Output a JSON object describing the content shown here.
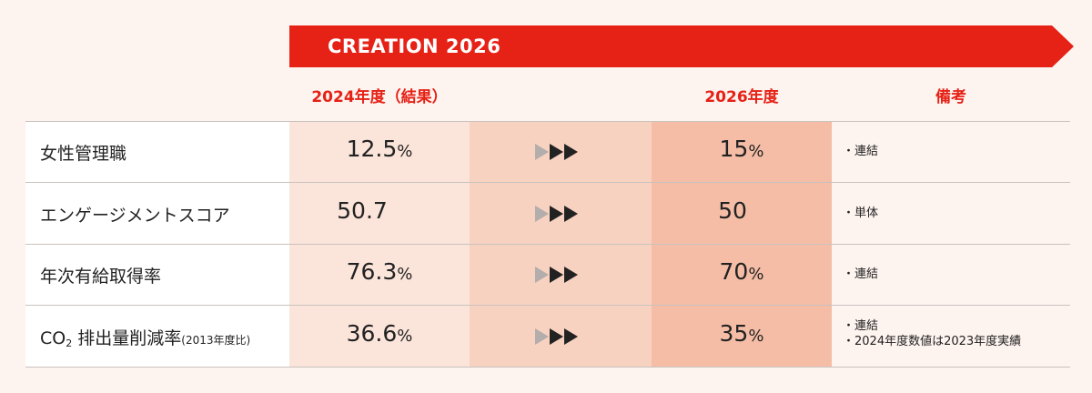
{
  "banner": {
    "title": "CREATION 2026"
  },
  "columns": {
    "result_2024": "2024年度（結果）",
    "target_2026": "2026年度",
    "remarks": "備考"
  },
  "rows": [
    {
      "label": "女性管理職",
      "value_2024": "12.5",
      "unit_2024": "%",
      "value_2026": "15",
      "unit_2026": "%",
      "notes": [
        "・連結"
      ]
    },
    {
      "label": "エンゲージメントスコア",
      "value_2024": "50.7",
      "unit_2024": "",
      "value_2026": "50",
      "unit_2026": "",
      "notes": [
        "・単体"
      ]
    },
    {
      "label": "年次有給取得率",
      "value_2024": "76.3",
      "unit_2024": "%",
      "value_2026": "70",
      "unit_2026": "%",
      "notes": [
        "・連結"
      ]
    },
    {
      "label_main": "CO",
      "label_sub": "2",
      "label_rest": " 排出量削減率",
      "label_small": "(2013年度比)",
      "value_2024": "36.6",
      "unit_2024": "%",
      "value_2026": "35",
      "unit_2026": "%",
      "notes": [
        "・連結",
        "・2024年度数値は2023年度実績"
      ]
    }
  ],
  "colors": {
    "accent": "#e62116",
    "arrow_dark": "#222222",
    "arrow_light": "#b3adab"
  }
}
